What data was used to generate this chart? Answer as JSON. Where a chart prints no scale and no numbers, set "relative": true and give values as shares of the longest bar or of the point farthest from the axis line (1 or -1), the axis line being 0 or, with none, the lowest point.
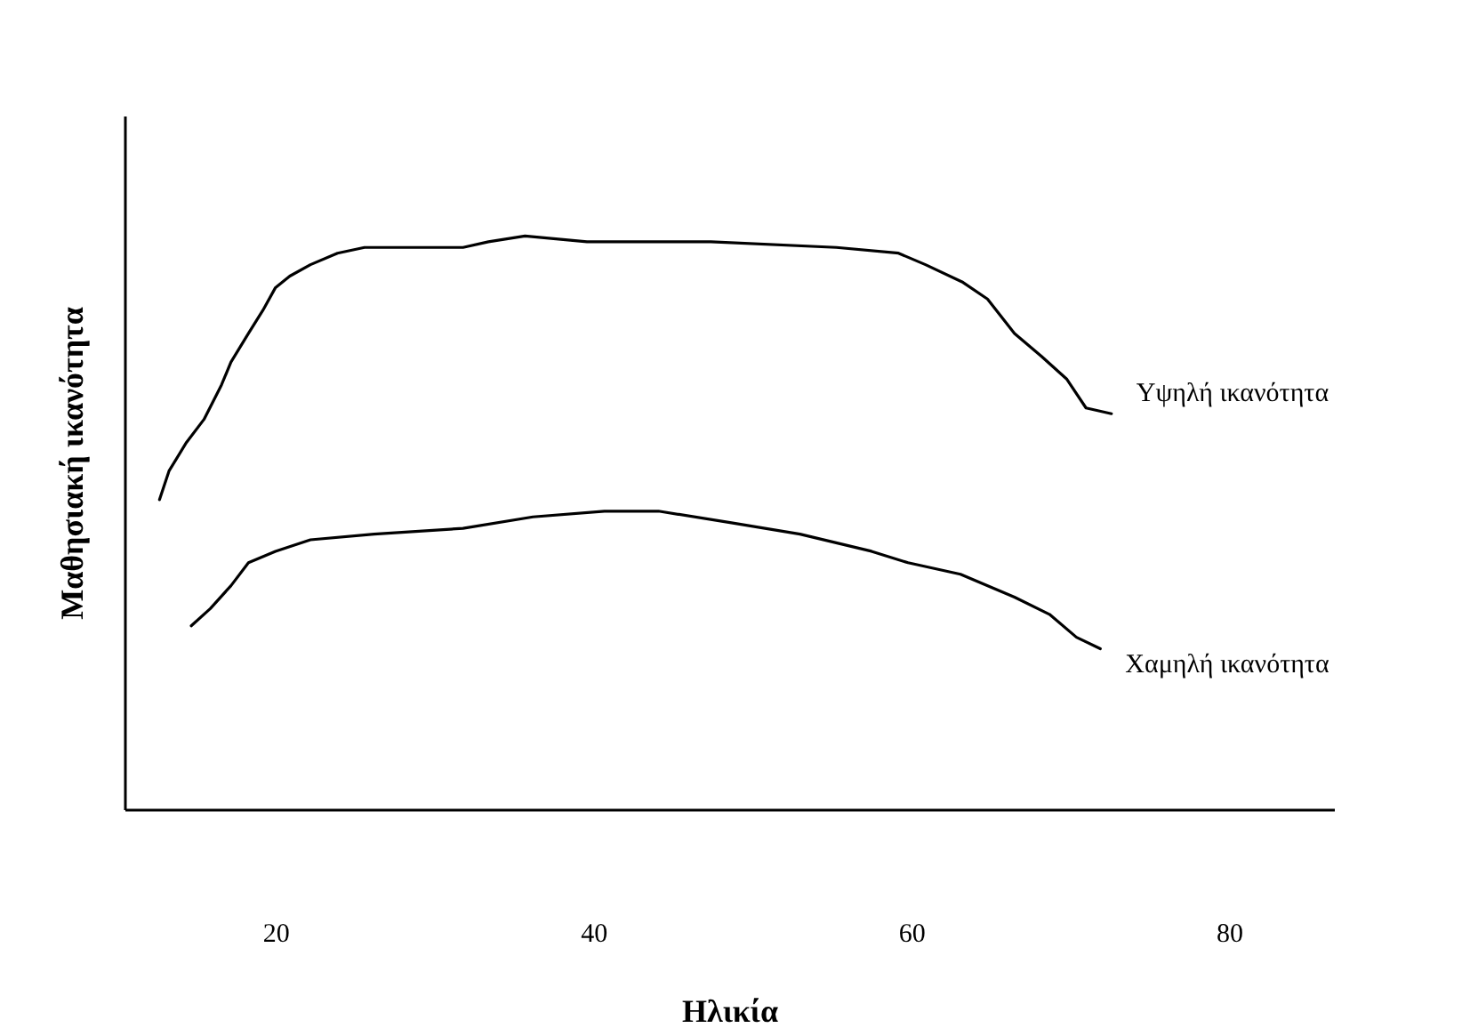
{
  "chart_data": {
    "type": "line",
    "relative": true,
    "xlabel": "Ηλικία",
    "ylabel": "Μαθησιακή ικανότητα",
    "xlim": [
      10.5,
      86.6
    ],
    "xticks": [
      20,
      40,
      60,
      80
    ],
    "grid": false,
    "marker": "none",
    "line_style": "solid",
    "series": [
      {
        "name": "Υψηλή ικανότητα",
        "color": "#000000",
        "x": [
          12.7,
          13.3,
          14.4,
          15.5,
          16.6,
          17.2,
          18.3,
          19.2,
          20.0,
          20.9,
          22.2,
          23.9,
          25.6,
          31.8,
          33.4,
          35.7,
          39.6,
          47.4,
          55.3,
          59.2,
          60.9,
          63.2,
          64.8,
          66.5,
          68.2,
          69.8,
          71.0,
          72.6
        ],
        "values": [
          0.54,
          0.59,
          0.64,
          0.68,
          0.74,
          0.78,
          0.83,
          0.87,
          0.91,
          0.93,
          0.95,
          0.97,
          0.98,
          0.98,
          0.99,
          1.0,
          0.99,
          0.99,
          0.98,
          0.97,
          0.95,
          0.92,
          0.89,
          0.83,
          0.79,
          0.75,
          0.7,
          0.69
        ]
      },
      {
        "name": "Χαμηλή ικανότητα",
        "color": "#000000",
        "x": [
          14.7,
          15.9,
          17.2,
          18.3,
          20.0,
          22.2,
          26.2,
          31.8,
          36.2,
          40.7,
          44.1,
          48.6,
          53.0,
          57.5,
          59.8,
          63.1,
          66.5,
          68.7,
          70.4,
          71.9
        ],
        "values": [
          0.32,
          0.35,
          0.39,
          0.43,
          0.45,
          0.47,
          0.48,
          0.49,
          0.51,
          0.52,
          0.52,
          0.5,
          0.48,
          0.45,
          0.43,
          0.41,
          0.37,
          0.34,
          0.3,
          0.28
        ]
      }
    ]
  }
}
